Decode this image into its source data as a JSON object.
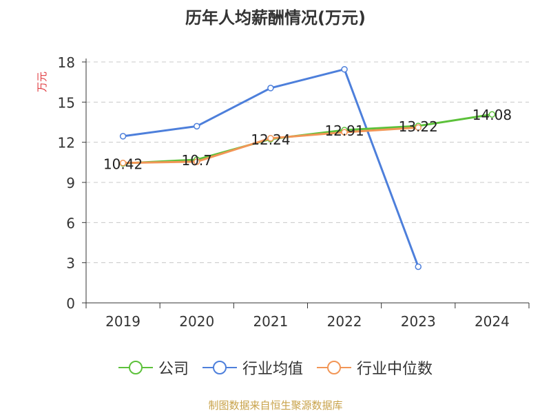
{
  "title": "历年人均薪酬情况(万元)",
  "y_unit_label": "万元",
  "footer_text": "制图数据来自恒生聚源数据库",
  "chart_data": {
    "type": "line",
    "title": "历年人均薪酬情况(万元)",
    "xlabel": "",
    "ylabel": "万元",
    "categories": [
      "2019",
      "2020",
      "2021",
      "2022",
      "2023",
      "2024"
    ],
    "ylim": [
      0,
      18
    ],
    "yticks": [
      0,
      3,
      6,
      9,
      12,
      15,
      18
    ],
    "grid": true,
    "legend_position": "bottom",
    "series": [
      {
        "name": "公司",
        "color": "#5cc13a",
        "values": [
          10.42,
          10.7,
          12.24,
          12.91,
          13.22,
          14.08
        ],
        "show_labels": true
      },
      {
        "name": "行业均值",
        "color": "#4d7fdb",
        "values": [
          12.45,
          13.2,
          16.05,
          17.45,
          2.7,
          null
        ],
        "show_labels": false
      },
      {
        "name": "行业中位数",
        "color": "#f29656",
        "values": [
          10.45,
          10.55,
          12.3,
          12.75,
          13.1,
          null
        ],
        "show_labels": false
      }
    ]
  }
}
